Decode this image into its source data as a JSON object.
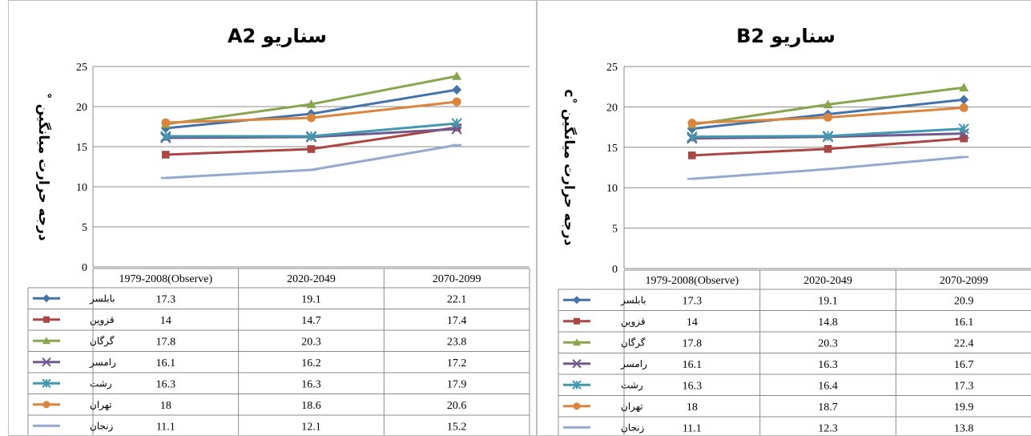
{
  "chart_data": [
    {
      "type": "line",
      "title": "سناریو A2",
      "ylabel": "درجه حرارت میانگین ˚",
      "ylim": [
        0,
        25
      ],
      "yticks": [
        0,
        5,
        10,
        15,
        20,
        25
      ],
      "categories": [
        "1979-2008(Observe)",
        "2020-2049",
        "2070-2099"
      ],
      "grid": true,
      "legend": "data-table",
      "series": [
        {
          "name": "بابلسر",
          "color": "#4572A7",
          "marker": "diamond",
          "values": [
            17.3,
            19.1,
            22.1
          ]
        },
        {
          "name": "قزوین",
          "color": "#AA4643",
          "marker": "square",
          "values": [
            14,
            14.7,
            17.4
          ]
        },
        {
          "name": "گرگان",
          "color": "#89A54E",
          "marker": "triangle",
          "values": [
            17.8,
            20.3,
            23.8
          ]
        },
        {
          "name": "رامسر",
          "color": "#71588F",
          "marker": "x",
          "values": [
            16.1,
            16.2,
            17.2
          ]
        },
        {
          "name": "رشت",
          "color": "#4198AF",
          "marker": "star",
          "values": [
            16.3,
            16.3,
            17.9
          ]
        },
        {
          "name": "تهران",
          "color": "#DB843D",
          "marker": "circle",
          "values": [
            18,
            18.6,
            20.6
          ]
        },
        {
          "name": "زنجان",
          "color": "#93A9CF",
          "marker": "dash",
          "values": [
            11.1,
            12.1,
            15.2
          ]
        }
      ]
    },
    {
      "type": "line",
      "title": "سناریو B2",
      "ylabel": "درجه حرارت میانگین ˚c",
      "ylim": [
        0,
        25
      ],
      "yticks": [
        0,
        5,
        10,
        15,
        20,
        25
      ],
      "categories": [
        "1979-2008(Observe)",
        "2020-2049",
        "2070-2099"
      ],
      "grid": true,
      "legend": "data-table",
      "series": [
        {
          "name": "بابلسر",
          "color": "#4572A7",
          "marker": "diamond",
          "values": [
            17.3,
            19.1,
            20.9
          ]
        },
        {
          "name": "قزوین",
          "color": "#AA4643",
          "marker": "square",
          "values": [
            14,
            14.8,
            16.1
          ]
        },
        {
          "name": "گرگان",
          "color": "#89A54E",
          "marker": "triangle",
          "values": [
            17.8,
            20.3,
            22.4
          ]
        },
        {
          "name": "رامسر",
          "color": "#71588F",
          "marker": "x",
          "values": [
            16.1,
            16.3,
            16.7
          ]
        },
        {
          "name": "رشت",
          "color": "#4198AF",
          "marker": "star",
          "values": [
            16.3,
            16.4,
            17.3
          ]
        },
        {
          "name": "تهران",
          "color": "#DB843D",
          "marker": "circle",
          "values": [
            18,
            18.7,
            19.9
          ]
        },
        {
          "name": "زنجان",
          "color": "#93A9CF",
          "marker": "dash",
          "values": [
            11.1,
            12.3,
            13.8
          ]
        }
      ]
    }
  ]
}
